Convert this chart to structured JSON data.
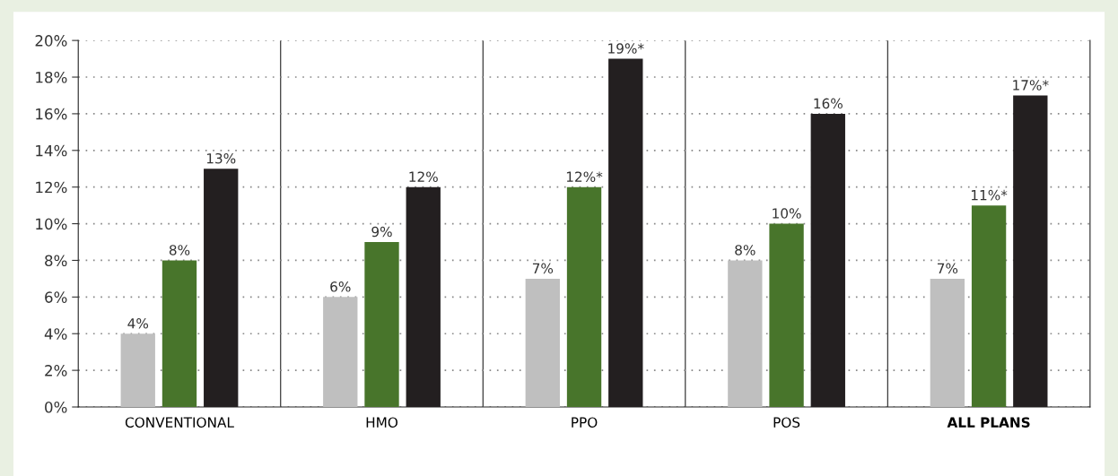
{
  "chart_data": {
    "type": "bar",
    "categories": [
      "CONVENTIONAL",
      "HMO",
      "PPO",
      "POS",
      "ALL PLANS"
    ],
    "series": [
      {
        "color": "#bfbfbf",
        "values": [
          4,
          6,
          7,
          8,
          7
        ],
        "value_labels": [
          "4%",
          "6%",
          "7%",
          "8%",
          "7%"
        ]
      },
      {
        "color": "#48752b",
        "values": [
          8,
          9,
          12,
          10,
          11
        ],
        "value_labels": [
          "8%",
          "9%",
          "12%*",
          "10%",
          "11%*"
        ]
      },
      {
        "color": "#231f20",
        "values": [
          13,
          12,
          19,
          16,
          17
        ],
        "value_labels": [
          "13%",
          "12%",
          "19%*",
          "16%",
          "17%*"
        ]
      }
    ],
    "ylim": [
      0,
      20
    ],
    "yticks": [
      {
        "value": 0,
        "label": "0%"
      },
      {
        "value": 2,
        "label": "2%"
      },
      {
        "value": 4,
        "label": "4%"
      },
      {
        "value": 6,
        "label": "6%"
      },
      {
        "value": 8,
        "label": "8%"
      },
      {
        "value": 10,
        "label": "10%"
      },
      {
        "value": 12,
        "label": "12%"
      },
      {
        "value": 14,
        "label": "14%"
      },
      {
        "value": 16,
        "label": "16%"
      },
      {
        "value": 18,
        "label": "18%"
      },
      {
        "value": 20,
        "label": "20%"
      }
    ],
    "grid": "y",
    "legend": false
  }
}
